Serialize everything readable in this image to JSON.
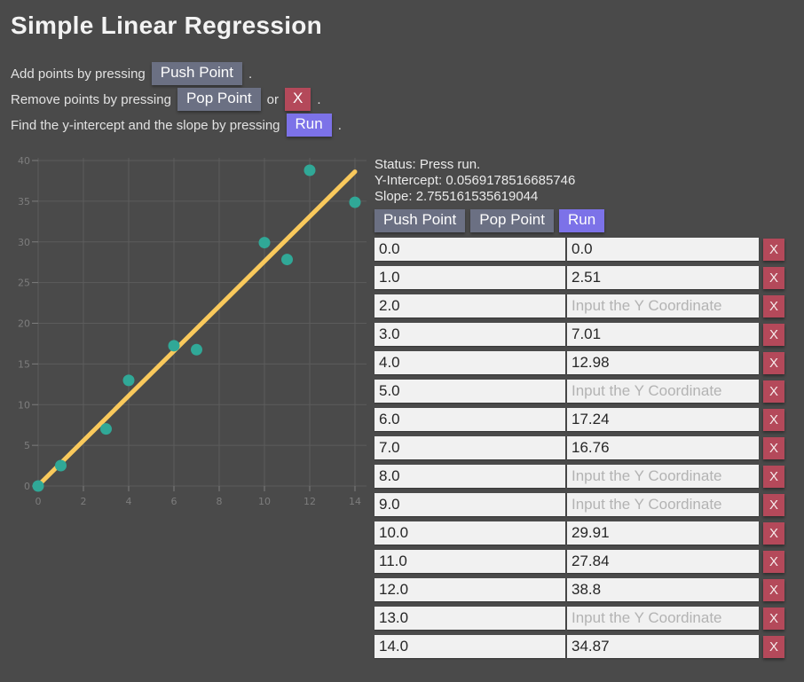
{
  "page": {
    "title": "Simple Linear Regression"
  },
  "instructions": {
    "line1": {
      "text": "Add points by pressing",
      "button": "Push Point",
      "period": "."
    },
    "line2": {
      "text": "Remove points by pressing",
      "button1": "Pop Point",
      "conjunction": "or",
      "button2": "X",
      "period": "."
    },
    "line3": {
      "text": "Find the y-intercept and the slope by pressing",
      "button": "Run",
      "period": "."
    }
  },
  "status": {
    "line1": "Status: Press run.",
    "y_intercept": "Y-Intercept: 0.0569178516685746",
    "slope": "Slope: 2.755161535619044"
  },
  "controls": {
    "push": "Push Point",
    "pop": "Pop Point",
    "run": "Run"
  },
  "table": {
    "y_placeholder": "Input the Y Coordinate",
    "delete_label": "X",
    "rows": [
      {
        "x": "0.0",
        "y": "0.0"
      },
      {
        "x": "1.0",
        "y": "2.51"
      },
      {
        "x": "2.0",
        "y": ""
      },
      {
        "x": "3.0",
        "y": "7.01"
      },
      {
        "x": "4.0",
        "y": "12.98"
      },
      {
        "x": "5.0",
        "y": ""
      },
      {
        "x": "6.0",
        "y": "17.24"
      },
      {
        "x": "7.0",
        "y": "16.76"
      },
      {
        "x": "8.0",
        "y": ""
      },
      {
        "x": "9.0",
        "y": ""
      },
      {
        "x": "10.0",
        "y": "29.91"
      },
      {
        "x": "11.0",
        "y": "27.84"
      },
      {
        "x": "12.0",
        "y": "38.8"
      },
      {
        "x": "13.0",
        "y": ""
      },
      {
        "x": "14.0",
        "y": "34.87"
      }
    ]
  },
  "chart_data": {
    "type": "scatter",
    "points": [
      [
        0,
        0
      ],
      [
        1,
        2.51
      ],
      [
        3,
        7.01
      ],
      [
        4,
        12.98
      ],
      [
        6,
        17.24
      ],
      [
        7,
        16.76
      ],
      [
        10,
        29.91
      ],
      [
        11,
        27.84
      ],
      [
        12,
        38.8
      ],
      [
        14,
        34.87
      ]
    ],
    "regression": {
      "intercept": 0.0569178516685746,
      "slope": 2.755161535619044
    },
    "xlim": [
      0,
      14
    ],
    "ylim": [
      0,
      40
    ],
    "xticks": [
      0,
      2,
      4,
      6,
      8,
      10,
      12,
      14
    ],
    "yticks": [
      0,
      5,
      10,
      15,
      20,
      25,
      30,
      35,
      40
    ],
    "grid": true,
    "colors": {
      "point": "#30a897",
      "line": "#f9c95c",
      "grid": "#5c5c5c",
      "label": "#7d7d7d",
      "background": "#4a4a4a"
    }
  }
}
